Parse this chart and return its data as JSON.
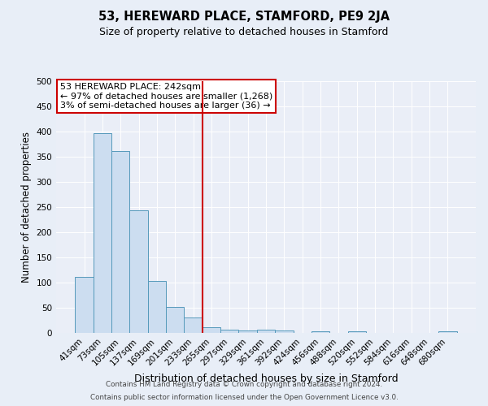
{
  "title": "53, HEREWARD PLACE, STAMFORD, PE9 2JA",
  "subtitle": "Size of property relative to detached houses in Stamford",
  "xlabel": "Distribution of detached houses by size in Stamford",
  "ylabel": "Number of detached properties",
  "bar_labels": [
    "41sqm",
    "73sqm",
    "105sqm",
    "137sqm",
    "169sqm",
    "201sqm",
    "233sqm",
    "265sqm",
    "297sqm",
    "329sqm",
    "361sqm",
    "392sqm",
    "424sqm",
    "456sqm",
    "488sqm",
    "520sqm",
    "552sqm",
    "584sqm",
    "616sqm",
    "648sqm",
    "680sqm"
  ],
  "bar_values": [
    112,
    396,
    362,
    243,
    104,
    51,
    30,
    11,
    6,
    5,
    6,
    5,
    0,
    3,
    0,
    4,
    0,
    0,
    0,
    0,
    4
  ],
  "bar_color": "#ccddf0",
  "bar_edge_color": "#5599bb",
  "vline_x": 6.5,
  "vline_color": "#cc0000",
  "annotation_text": "53 HEREWARD PLACE: 242sqm\n← 97% of detached houses are smaller (1,268)\n3% of semi-detached houses are larger (36) →",
  "annotation_box_color": "#ffffff",
  "annotation_box_edge_color": "#cc0000",
  "bg_color": "#e8eef7",
  "plot_bg_color": "#eaeef7",
  "footer1": "Contains HM Land Registry data © Crown copyright and database right 2024.",
  "footer2": "Contains public sector information licensed under the Open Government Licence v3.0.",
  "ylim": [
    0,
    500
  ],
  "yticks": [
    0,
    50,
    100,
    150,
    200,
    250,
    300,
    350,
    400,
    450,
    500
  ]
}
